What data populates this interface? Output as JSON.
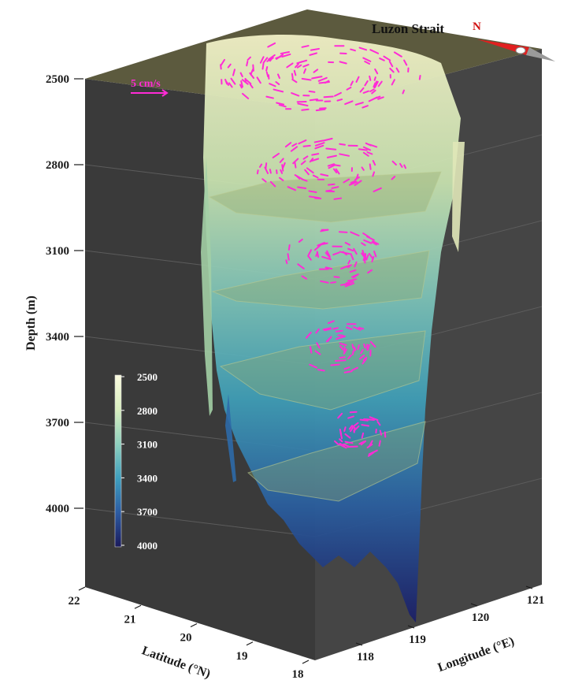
{
  "title": "Luzon Strait",
  "north_label": "N",
  "scale_label": "5 cm/s",
  "colors": {
    "wall": "#3a3a3a",
    "top_land": "#5c5a3e",
    "vectors": "#ff2bd6",
    "bathy_shallow": "#f3f2c8",
    "bathy_mid": "#3f9fb8",
    "bathy_deep": "#1b1e66"
  },
  "chart_data": {
    "type": "3d-bathymetry-with-vectors",
    "depth_axis": {
      "label": "Depth (m)",
      "ticks": [
        "2500",
        "2800",
        "3100",
        "3400",
        "3700",
        "4000"
      ]
    },
    "latitude_axis": {
      "label": "Latitude (°N)",
      "ticks": [
        "22",
        "21",
        "20",
        "19",
        "18"
      ]
    },
    "longitude_axis": {
      "label": "Longitude (°E)",
      "ticks": [
        "118",
        "119",
        "120",
        "121"
      ]
    },
    "colorbar": {
      "ticks": [
        "2500",
        "2800",
        "3100",
        "3400",
        "3700",
        "4000"
      ]
    },
    "layer_depths": [
      2500,
      2800,
      3100,
      3400,
      3700,
      4000
    ],
    "vector_layers": [
      2500,
      2800,
      3100,
      3400,
      3700
    ]
  }
}
